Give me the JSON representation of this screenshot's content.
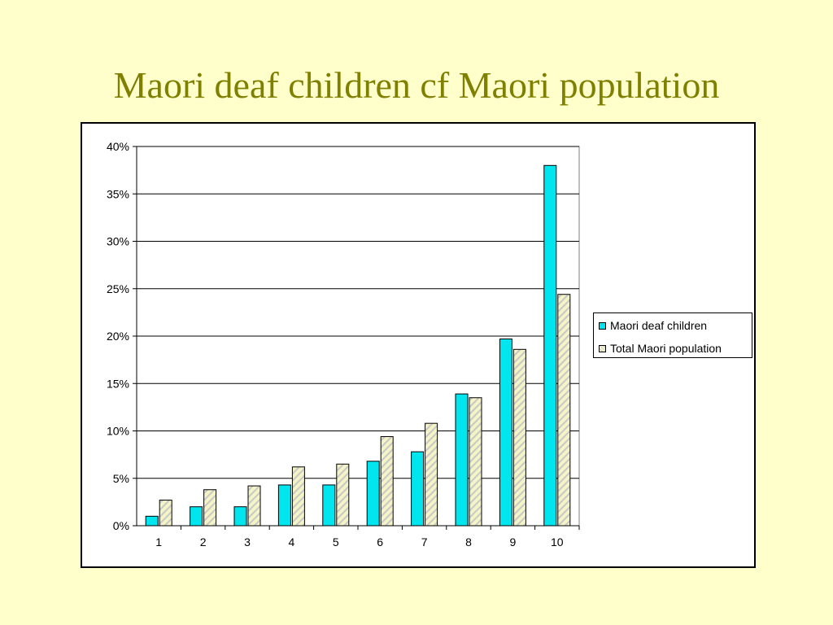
{
  "slide": {
    "title": "Maori deaf children cf Maori population"
  },
  "colors": {
    "background": "#ffffcc",
    "title": "#808000",
    "series1": "#00e5ee",
    "series2_base": "#f4f4c6",
    "series2_hatch": "#c8c8c8"
  },
  "chart_data": {
    "type": "bar",
    "title": "",
    "xlabel": "",
    "ylabel": "",
    "categories": [
      "1",
      "2",
      "3",
      "4",
      "5",
      "6",
      "7",
      "8",
      "9",
      "10"
    ],
    "series": [
      {
        "name": "Maori deaf children",
        "values": [
          1.0,
          2.0,
          2.0,
          4.3,
          4.3,
          6.8,
          7.8,
          13.9,
          19.7,
          38.0
        ]
      },
      {
        "name": "Total Maori population",
        "values": [
          2.7,
          3.8,
          4.2,
          6.2,
          6.5,
          9.4,
          10.8,
          13.5,
          18.6,
          24.4
        ]
      }
    ],
    "ylim": [
      0,
      40
    ],
    "yticks": [
      "0%",
      "5%",
      "10%",
      "15%",
      "20%",
      "25%",
      "30%",
      "35%",
      "40%"
    ],
    "ytick_values": [
      0,
      5,
      10,
      15,
      20,
      25,
      30,
      35,
      40
    ],
    "grid": true,
    "legend_position": "right"
  }
}
